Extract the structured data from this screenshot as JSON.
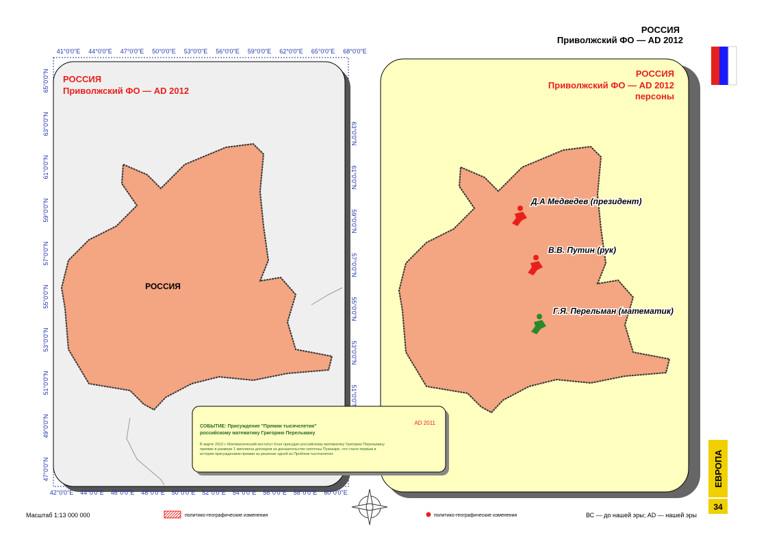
{
  "header": {
    "country": "РОССИЯ",
    "region": "Приволжский ФО — AD 2012"
  },
  "left_map": {
    "title": "РОССИЯ",
    "subtitle": "Приволжский ФО — AD 2012",
    "region_label": "РОССИЯ",
    "top_labels": [
      "41°0'0\"E",
      "44°0'0\"E",
      "47°0'0\"E",
      "50°0'0\"E",
      "53°0'0\"E",
      "56°0'0\"E",
      "59°0'0\"E",
      "62°0'0\"E",
      "65°0'0\"E",
      "68°0'0\"E"
    ],
    "bottom_labels": [
      "42°0'0\"E",
      "44°0'0\"E",
      "46°0'0\"E",
      "48°0'0\"E",
      "50°0'0\"E",
      "52°0'0\"E",
      "54°0'0\"E",
      "56°0'0\"E",
      "58°0'0\"E",
      "60°0'0\"E"
    ],
    "left_labels": [
      "65°0'0\"N",
      "63°0'0\"N",
      "61°0'0\"N",
      "59°0'0\"N",
      "57°0'0\"N",
      "55°0'0\"N",
      "53°0'0\"N",
      "51°0'0\"N",
      "49°0'0\"N",
      "47°0'0\"N"
    ],
    "right_labels": [
      "63°0'0\"N",
      "61°0'0\"N",
      "59°0'0\"N",
      "57°0'0\"N",
      "55°0'0\"N",
      "53°0'0\"N",
      "51°0'0\"N"
    ]
  },
  "right_map": {
    "title": "РОССИЯ",
    "subtitle": "Приволжский ФО — AD 2012",
    "caption": "персоны",
    "persons": [
      "Д.А Медведев (президент)",
      "В.В. Путин (рук)",
      "Г.Я. Перельман (математик)"
    ]
  },
  "event": {
    "title_line1": "СОБЫТИЕ: Присуждение \"Премии тысячелетия\"",
    "title_line2": "российскому математику Григорию Перельману",
    "date": "AD 2011",
    "body": [
      "В марте 2010 г. Математический институт Клэя присудил российскому математику Григорию Перельману",
      "премию в размере 1 миллиона долларов за доказательство гипотезы Пуанкаре, что стало первым в",
      "истории присуждением премии за решение одной из Проблем тысячелетия."
    ]
  },
  "footer": {
    "scale": "Масштаб 1:13 000 000",
    "legend_hatch": "политико-географические изменения",
    "legend_dot": "политико-географические изменения",
    "era_note": "ВС — до нашей эры; AD — нашей эры",
    "continent": "ЕВРОПА",
    "page": "34"
  }
}
